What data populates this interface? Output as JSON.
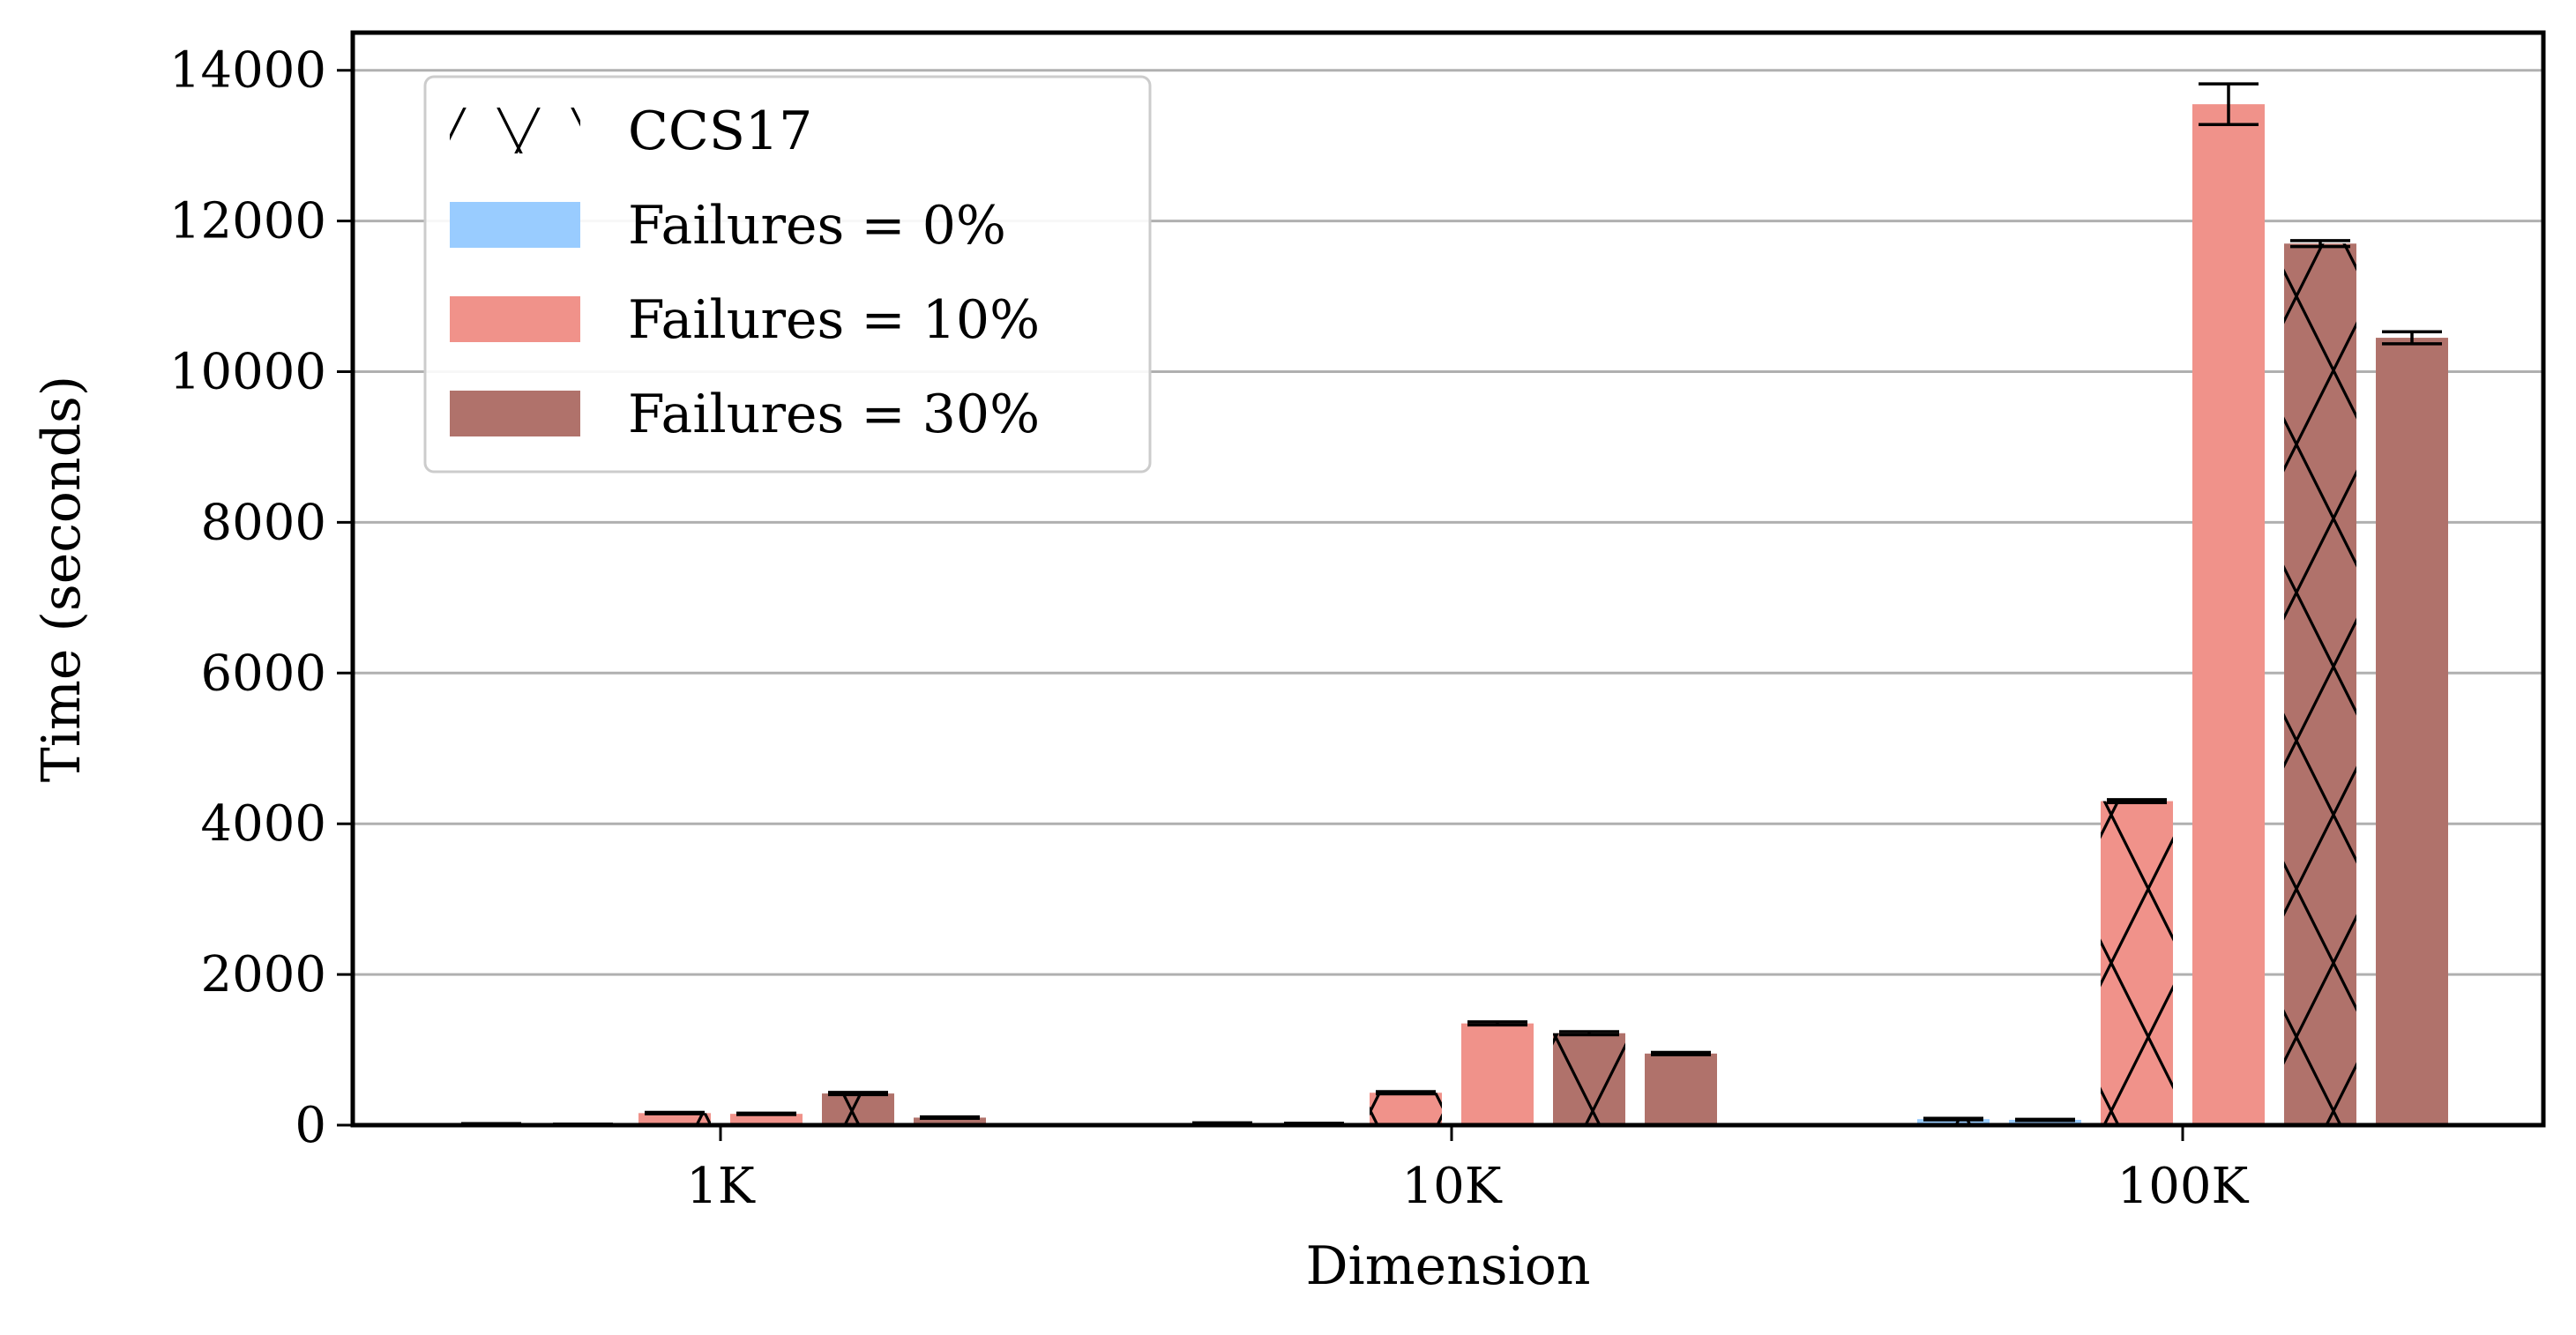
{
  "chart_data": {
    "type": "bar",
    "title": "",
    "xlabel": "Dimension",
    "ylabel": "Time (seconds)",
    "categories": [
      "1K",
      "10K",
      "100K"
    ],
    "ylim": [
      0,
      14500
    ],
    "yticks": [
      0,
      2000,
      4000,
      6000,
      8000,
      10000,
      12000,
      14000
    ],
    "grid": "horizontal",
    "legend_position": "top-left",
    "legend": [
      {
        "label": "CCS17",
        "kind": "hatch"
      },
      {
        "label": "Failures = 0%",
        "color": "#99ccff"
      },
      {
        "label": "Failures = 10%",
        "color": "#f0928a"
      },
      {
        "label": "Failures = 30%",
        "color": "#b0726b"
      }
    ],
    "series": [
      {
        "name": "CCS17 — Failures = 0%",
        "color": "#99ccff",
        "hatch": true,
        "values": [
          15,
          25,
          80
        ],
        "errors": [
          5,
          5,
          10
        ]
      },
      {
        "name": "Failures = 0%",
        "color": "#99ccff",
        "hatch": false,
        "values": [
          10,
          20,
          70
        ],
        "errors": [
          3,
          5,
          8
        ]
      },
      {
        "name": "CCS17 — Failures = 10%",
        "color": "#f0928a",
        "hatch": true,
        "values": [
          160,
          430,
          4300
        ],
        "errors": [
          10,
          15,
          20
        ]
      },
      {
        "name": "Failures = 10%",
        "color": "#f0928a",
        "hatch": false,
        "values": [
          150,
          1350,
          13550
        ],
        "errors": [
          10,
          20,
          270
        ]
      },
      {
        "name": "CCS17 — Failures = 30%",
        "color": "#b0726b",
        "hatch": true,
        "values": [
          420,
          1220,
          11700
        ],
        "errors": [
          15,
          20,
          40
        ]
      },
      {
        "name": "Failures = 30%",
        "color": "#b0726b",
        "hatch": false,
        "values": [
          100,
          950,
          10450
        ],
        "errors": [
          10,
          15,
          80
        ]
      }
    ]
  }
}
